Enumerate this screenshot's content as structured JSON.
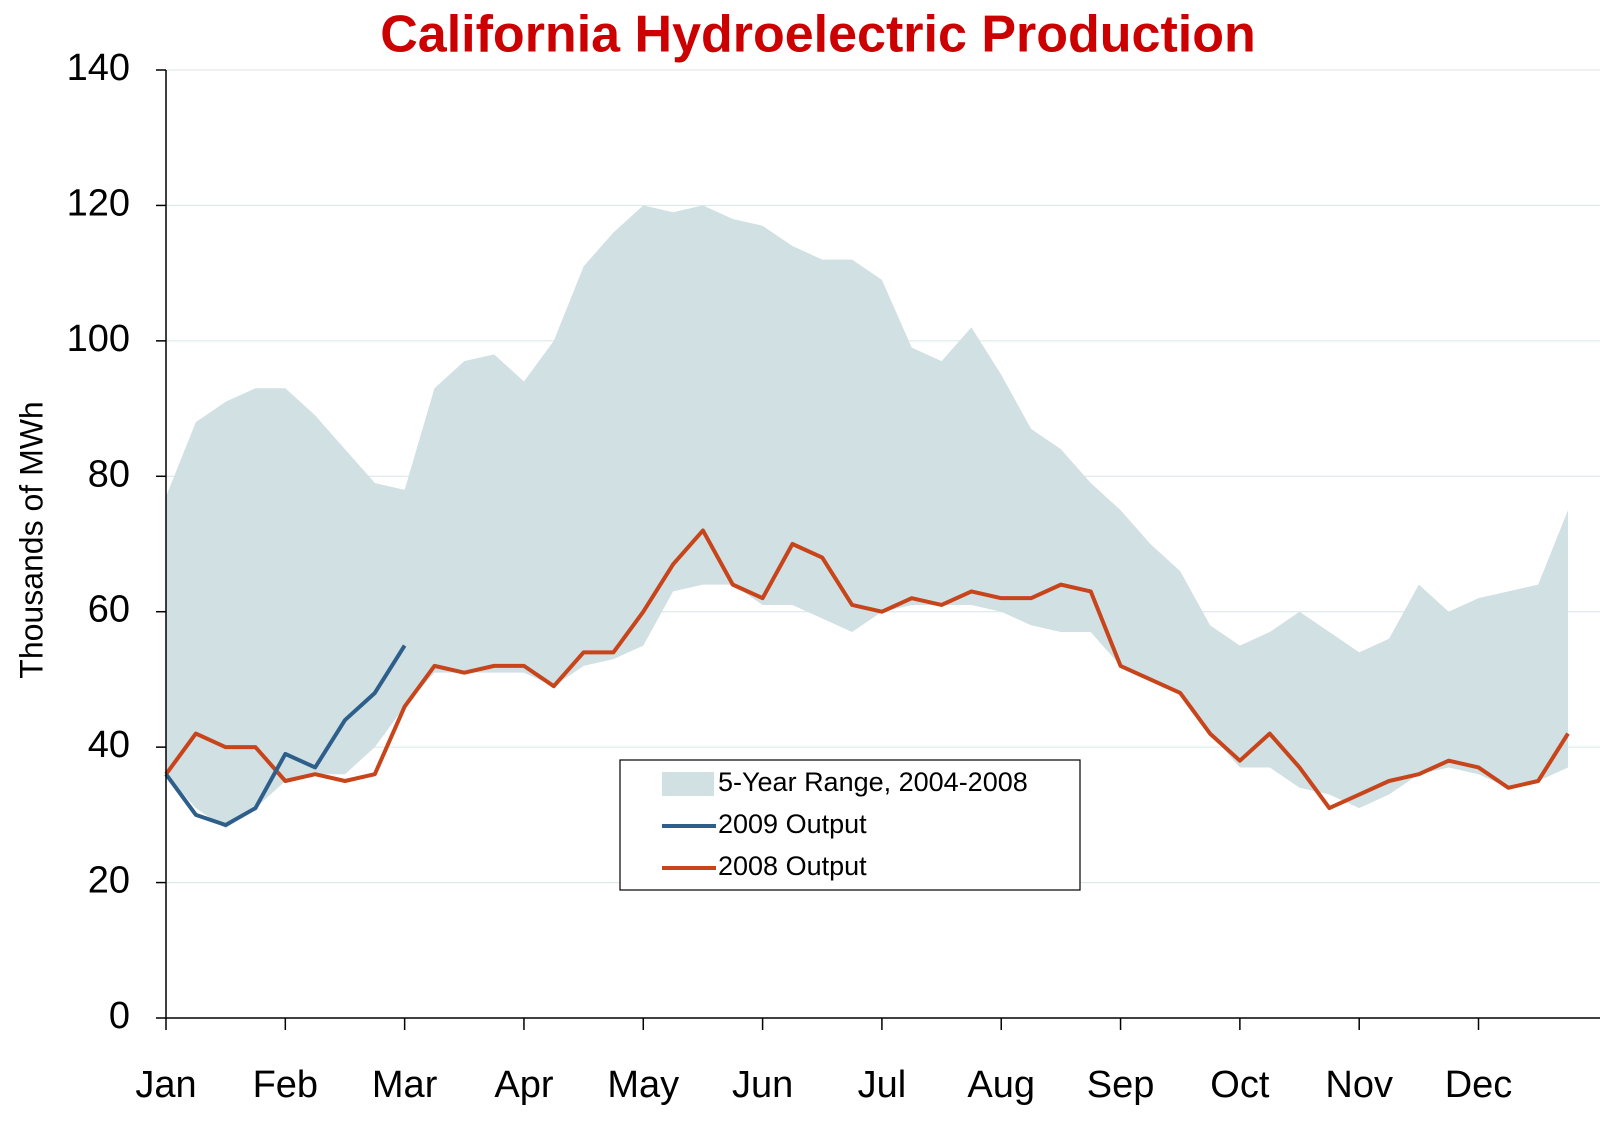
{
  "chart_data": {
    "type": "line",
    "title": "California Hydroelectric Production",
    "y_label": "Thousands of MWh",
    "categories": [
      "Jan",
      null,
      null,
      null,
      "Feb",
      null,
      null,
      null,
      "Mar",
      null,
      null,
      null,
      "Apr",
      null,
      null,
      null,
      "May",
      null,
      null,
      null,
      "Jun",
      null,
      null,
      null,
      "Jul",
      null,
      null,
      null,
      "Aug",
      null,
      null,
      null,
      "Sep",
      null,
      null,
      null,
      "Oct",
      null,
      null,
      null,
      "Nov",
      null,
      null,
      null,
      "Dec",
      null,
      null,
      null
    ],
    "band": {
      "name": "5-Year Range, 2004-2008",
      "color": "#d0e0e3",
      "upper": [
        77,
        88,
        91,
        93,
        93,
        89,
        84,
        79,
        78,
        93,
        97,
        98,
        94,
        100,
        111,
        116,
        120,
        119,
        120,
        118,
        117,
        114,
        112,
        112,
        109,
        99,
        97,
        102,
        95,
        87,
        84,
        79,
        75,
        70,
        66,
        58,
        55,
        57,
        60,
        57,
        54,
        56,
        64,
        60,
        62,
        63,
        64,
        75
      ],
      "lower": [
        36,
        31,
        28,
        31,
        35,
        36,
        36,
        40,
        46,
        51,
        51,
        51,
        51,
        49,
        52,
        53,
        55,
        63,
        64,
        64,
        61,
        61,
        59,
        57,
        60,
        61,
        61,
        61,
        60,
        58,
        57,
        57,
        52,
        50,
        48,
        42,
        37,
        37,
        34,
        33,
        31,
        33,
        36,
        37,
        36,
        34,
        35,
        37
      ]
    },
    "series": [
      {
        "name": "2009 Output",
        "color": "#2e5f8a",
        "values": [
          36,
          30,
          28.5,
          31,
          39,
          37,
          44,
          48,
          55,
          null,
          null,
          null,
          null,
          null,
          null,
          null,
          null,
          null,
          null,
          null,
          null,
          null,
          null,
          null,
          null,
          null,
          null,
          null,
          null,
          null,
          null,
          null,
          null,
          null,
          null,
          null,
          null,
          null,
          null,
          null,
          null,
          null,
          null,
          null,
          null,
          null,
          null,
          null
        ]
      },
      {
        "name": "2008 Output",
        "color": "#c8441a",
        "values": [
          36,
          42,
          40,
          40,
          35,
          36,
          35,
          36,
          46,
          52,
          51,
          52,
          52,
          49,
          54,
          54,
          60,
          67,
          72,
          64,
          62,
          70,
          68,
          61,
          60,
          62,
          61,
          63,
          62,
          62,
          64,
          63,
          52,
          50,
          48,
          42,
          38,
          42,
          37,
          31,
          33,
          35,
          36,
          38,
          37,
          34,
          35,
          42
        ]
      }
    ],
    "ylim": [
      0,
      140
    ],
    "yticks": [
      0,
      20,
      40,
      60,
      80,
      100,
      120,
      140
    ],
    "grid": true,
    "legend": "center"
  }
}
